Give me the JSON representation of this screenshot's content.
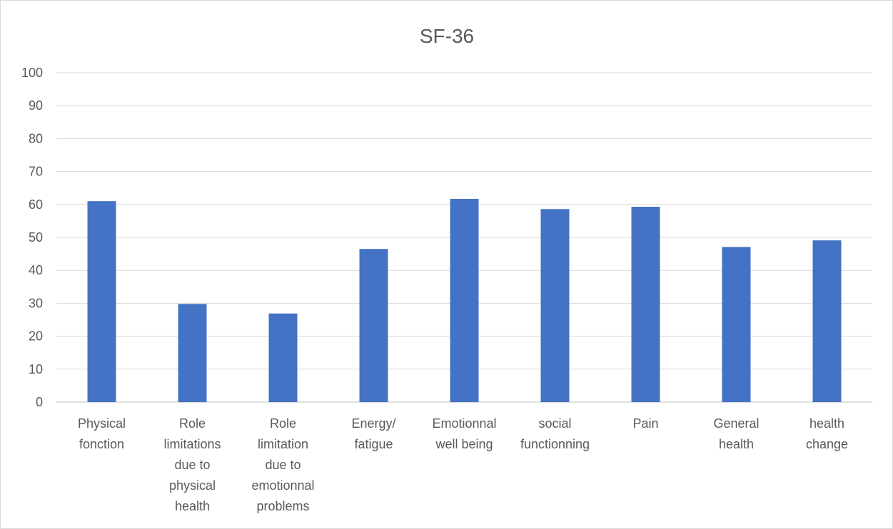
{
  "chart_data": {
    "type": "bar",
    "title": "SF-36",
    "xlabel": "",
    "ylabel": "",
    "ylim": [
      0,
      100
    ],
    "yticks": [
      0,
      10,
      20,
      30,
      40,
      50,
      60,
      70,
      80,
      90,
      100
    ],
    "grid": true,
    "legend": "none",
    "bar_color": "#4472c4",
    "categories": [
      "Physical fonction",
      "Role limitations due to physical health",
      "Role limitation due to emotionnal problems",
      "Energy/ fatigue",
      "Emotionnal well being",
      "social functionning",
      "Pain",
      "General health",
      "health change"
    ],
    "category_label_lines": [
      [
        "Physical",
        "fonction"
      ],
      [
        "Role",
        "limitations",
        "due to",
        "physical",
        "health"
      ],
      [
        "Role",
        "limitation",
        "due to",
        "emotionnal",
        "problems"
      ],
      [
        "Energy/",
        "fatigue"
      ],
      [
        "Emotionnal",
        "well being"
      ],
      [
        "social",
        "functionning"
      ],
      [
        "Pain"
      ],
      [
        "General",
        "health"
      ],
      [
        "health",
        "change"
      ]
    ],
    "values": [
      61,
      29.8,
      26.9,
      46.5,
      61.7,
      58.6,
      59.3,
      47.1,
      49.1
    ]
  }
}
